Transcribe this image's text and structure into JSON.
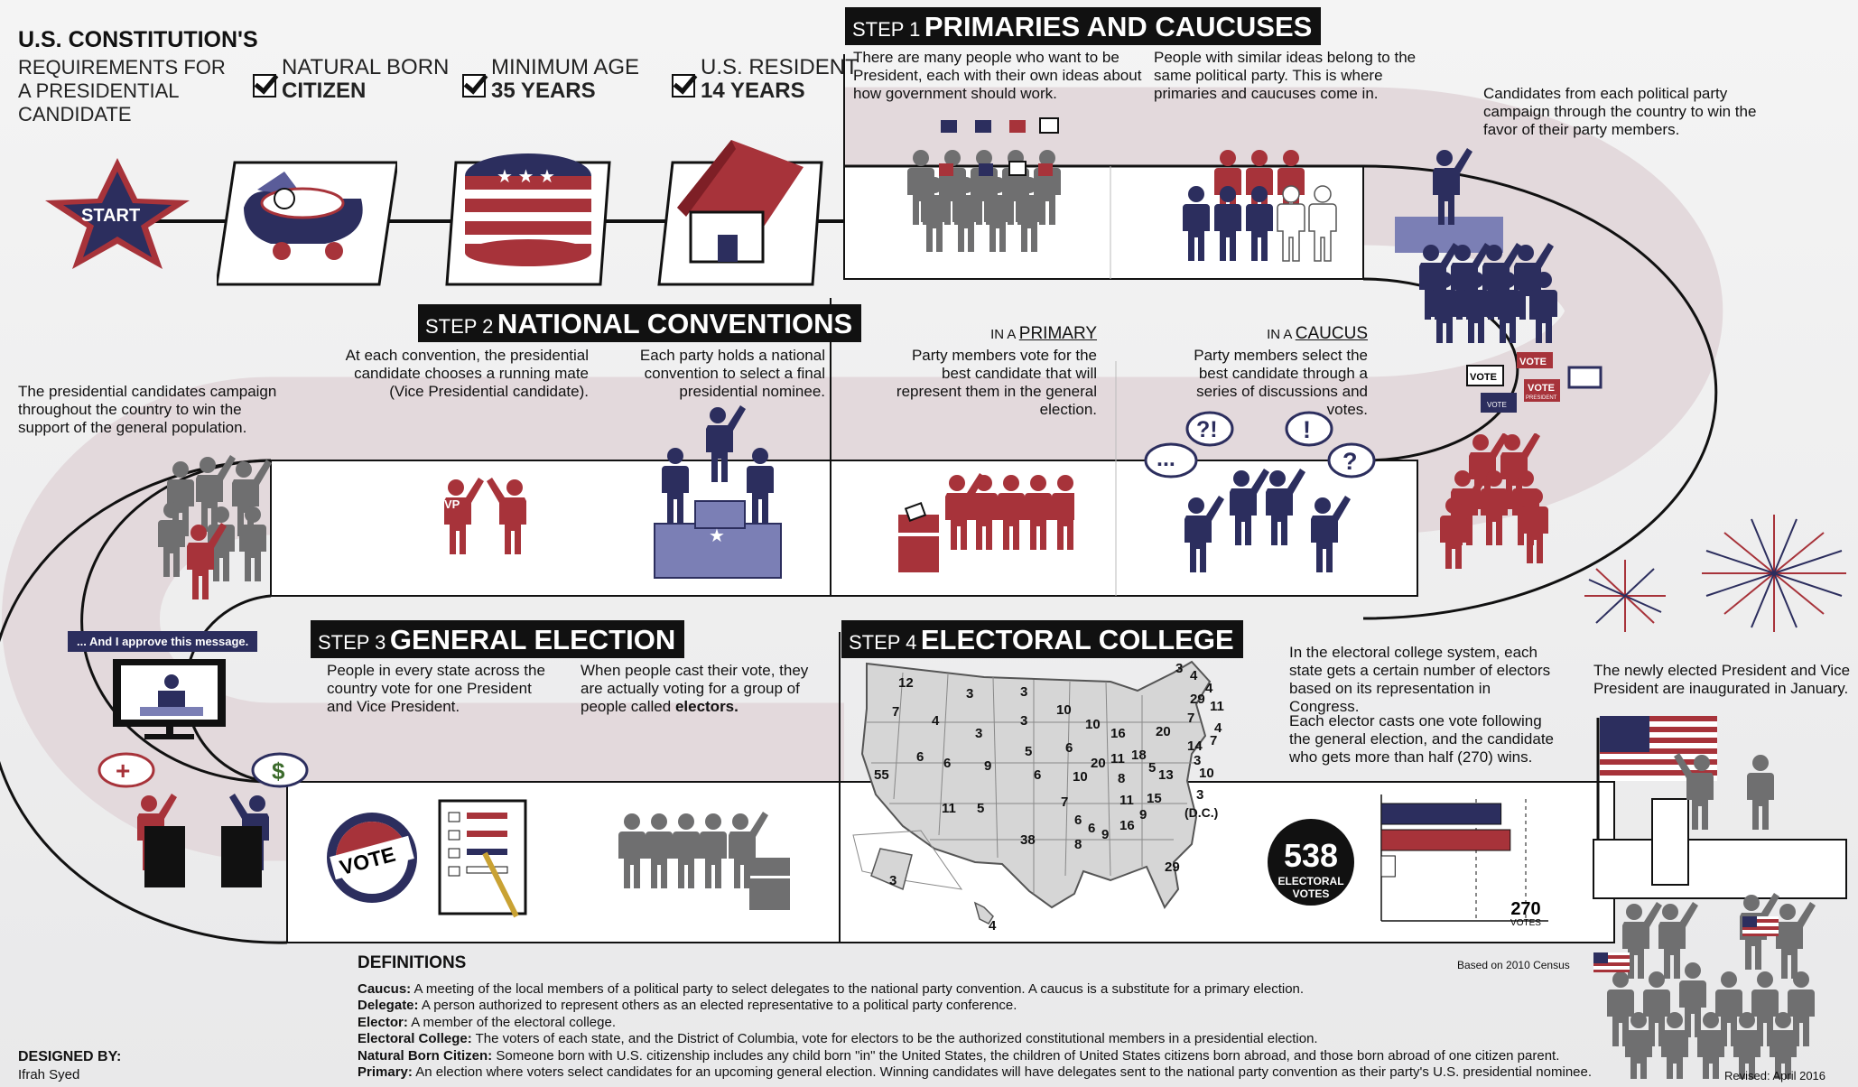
{
  "colors": {
    "red": "#a7333a",
    "navy": "#2c2e5e",
    "gray": "#6f6f70",
    "lavender": "#7b7fb5",
    "pink": "#e3d9dc"
  },
  "header": {
    "title": "U.S. CONSTITUTION'S",
    "subtitle_lines": [
      "REQUIREMENTS FOR",
      "A PRESIDENTIAL",
      "CANDIDATE"
    ]
  },
  "requirements": [
    {
      "label": "NATURAL BORN",
      "value": "CITIZEN",
      "icon": "baby-stroller-icon"
    },
    {
      "label": "MINIMUM AGE",
      "value": "35 YEARS",
      "icon": "birthday-cake-icon"
    },
    {
      "label": "U.S. RESIDENT",
      "value": "14 YEARS",
      "icon": "house-icon"
    }
  ],
  "start": "START",
  "step1": {
    "num": "STEP 1",
    "title": "PRIMARIES AND CAUCUSES",
    "left_text": "There are many people who want to be President, each with their own ideas about how government should work.",
    "right_text": "People with similar ideas belong to the same political party. This is where primaries and caucuses come in.",
    "side_text": "Candidates from each political party campaign through the country to win the favor of their party members.",
    "primary_pre": "IN A",
    "primary_word": "PRIMARY",
    "primary_text": "Party members vote for the best candidate that will represent them in the general election.",
    "caucus_pre": "IN A",
    "caucus_word": "CAUCUS",
    "caucus_text": "Party members select the best candidate through a series of discussions and votes.",
    "bubbles": [
      "?!",
      "!",
      "...",
      "?"
    ],
    "signs": [
      "VOTE",
      "VOTE",
      "VOTE",
      "VOTE"
    ],
    "sign_sub": "PRESIDENT"
  },
  "step2": {
    "num": "STEP 2",
    "title": "NATIONAL CONVENTIONS",
    "left_text": "At each convention, the presidential candidate chooses a running mate (Vice Presidential candidate).",
    "right_text": "Each party holds a national convention to select a final presidential nominee.",
    "vp": "VP",
    "side_text": "The presidential candidates campaign throughout the country to win the support of the general population."
  },
  "step3": {
    "num": "STEP 3",
    "title": "GENERAL ELECTION",
    "left_text": "People in every state across the country vote for one President and Vice President.",
    "right_pre": "When people cast their vote, they are actually voting for a group of people called",
    "right_bold": "electors.",
    "tv_caption": "... And I approve this message.",
    "vote_button": "VOTE"
  },
  "step4": {
    "num": "STEP 4",
    "title": "ELECTORAL COLLEGE",
    "text1": "In the electoral college system, each state gets a certain number of electors based on its representation in Congress.",
    "text2": "Each elector casts one vote following the general election, and the candidate who gets more than half (270) wins.",
    "total": "538",
    "total_label_1": "ELECTORAL",
    "total_label_2": "VOTES",
    "threshold": "270",
    "threshold_label": "VOTES",
    "census": "Based on 2010 Census",
    "bars": [
      {
        "label": "navy",
        "value": 0.78
      },
      {
        "label": "red",
        "value": 0.84
      },
      {
        "label": "white",
        "value": 0.09
      }
    ],
    "map_numbers": [
      "12",
      "3",
      "3",
      "7",
      "4",
      "3",
      "10",
      "10",
      "3",
      "4",
      "4",
      "11",
      "29",
      "3",
      "6",
      "5",
      "4",
      "16",
      "7",
      "14",
      "55",
      "9",
      "6",
      "20",
      "11",
      "18",
      "20",
      "3",
      "10",
      "6",
      "9",
      "8",
      "5",
      "13",
      "11",
      "15",
      "5",
      "11",
      "7",
      "6",
      "9",
      "16",
      "3",
      "38",
      "8",
      "6",
      "9",
      "29",
      "3",
      "4",
      "(D.C.)"
    ]
  },
  "inauguration": "The newly elected President and Vice President are inaugurated in January.",
  "definitions": {
    "title": "DEFINITIONS",
    "items": [
      {
        "term": "Caucus:",
        "text": "A meeting of the local members of a political party to select delegates to the national party convention. A caucus is a substitute for a primary election."
      },
      {
        "term": "Delegate:",
        "text": "A person authorized to represent others as an elected representative to a political party conference."
      },
      {
        "term": "Elector:",
        "text": "A member of the electoral college."
      },
      {
        "term": "Electoral College:",
        "text": "The voters of each state, and the District of Columbia, vote for electors to be the authorized constitutional members in a presidential election."
      },
      {
        "term": "Natural Born Citizen:",
        "text": "Someone born with U.S. citizenship includes any child born \"in\" the United States, the children of United States citizens born abroad, and those born abroad of one citizen parent."
      },
      {
        "term": "Primary:",
        "text": "An election where voters select candidates for an upcoming general election. Winning candidates will have delegates sent to the national party convention as their party's U.S. presidential nominee."
      }
    ]
  },
  "footer": {
    "designed_by": "DESIGNED BY:",
    "designer": "Ifrah Syed",
    "revised": "Revised: April 2016"
  }
}
